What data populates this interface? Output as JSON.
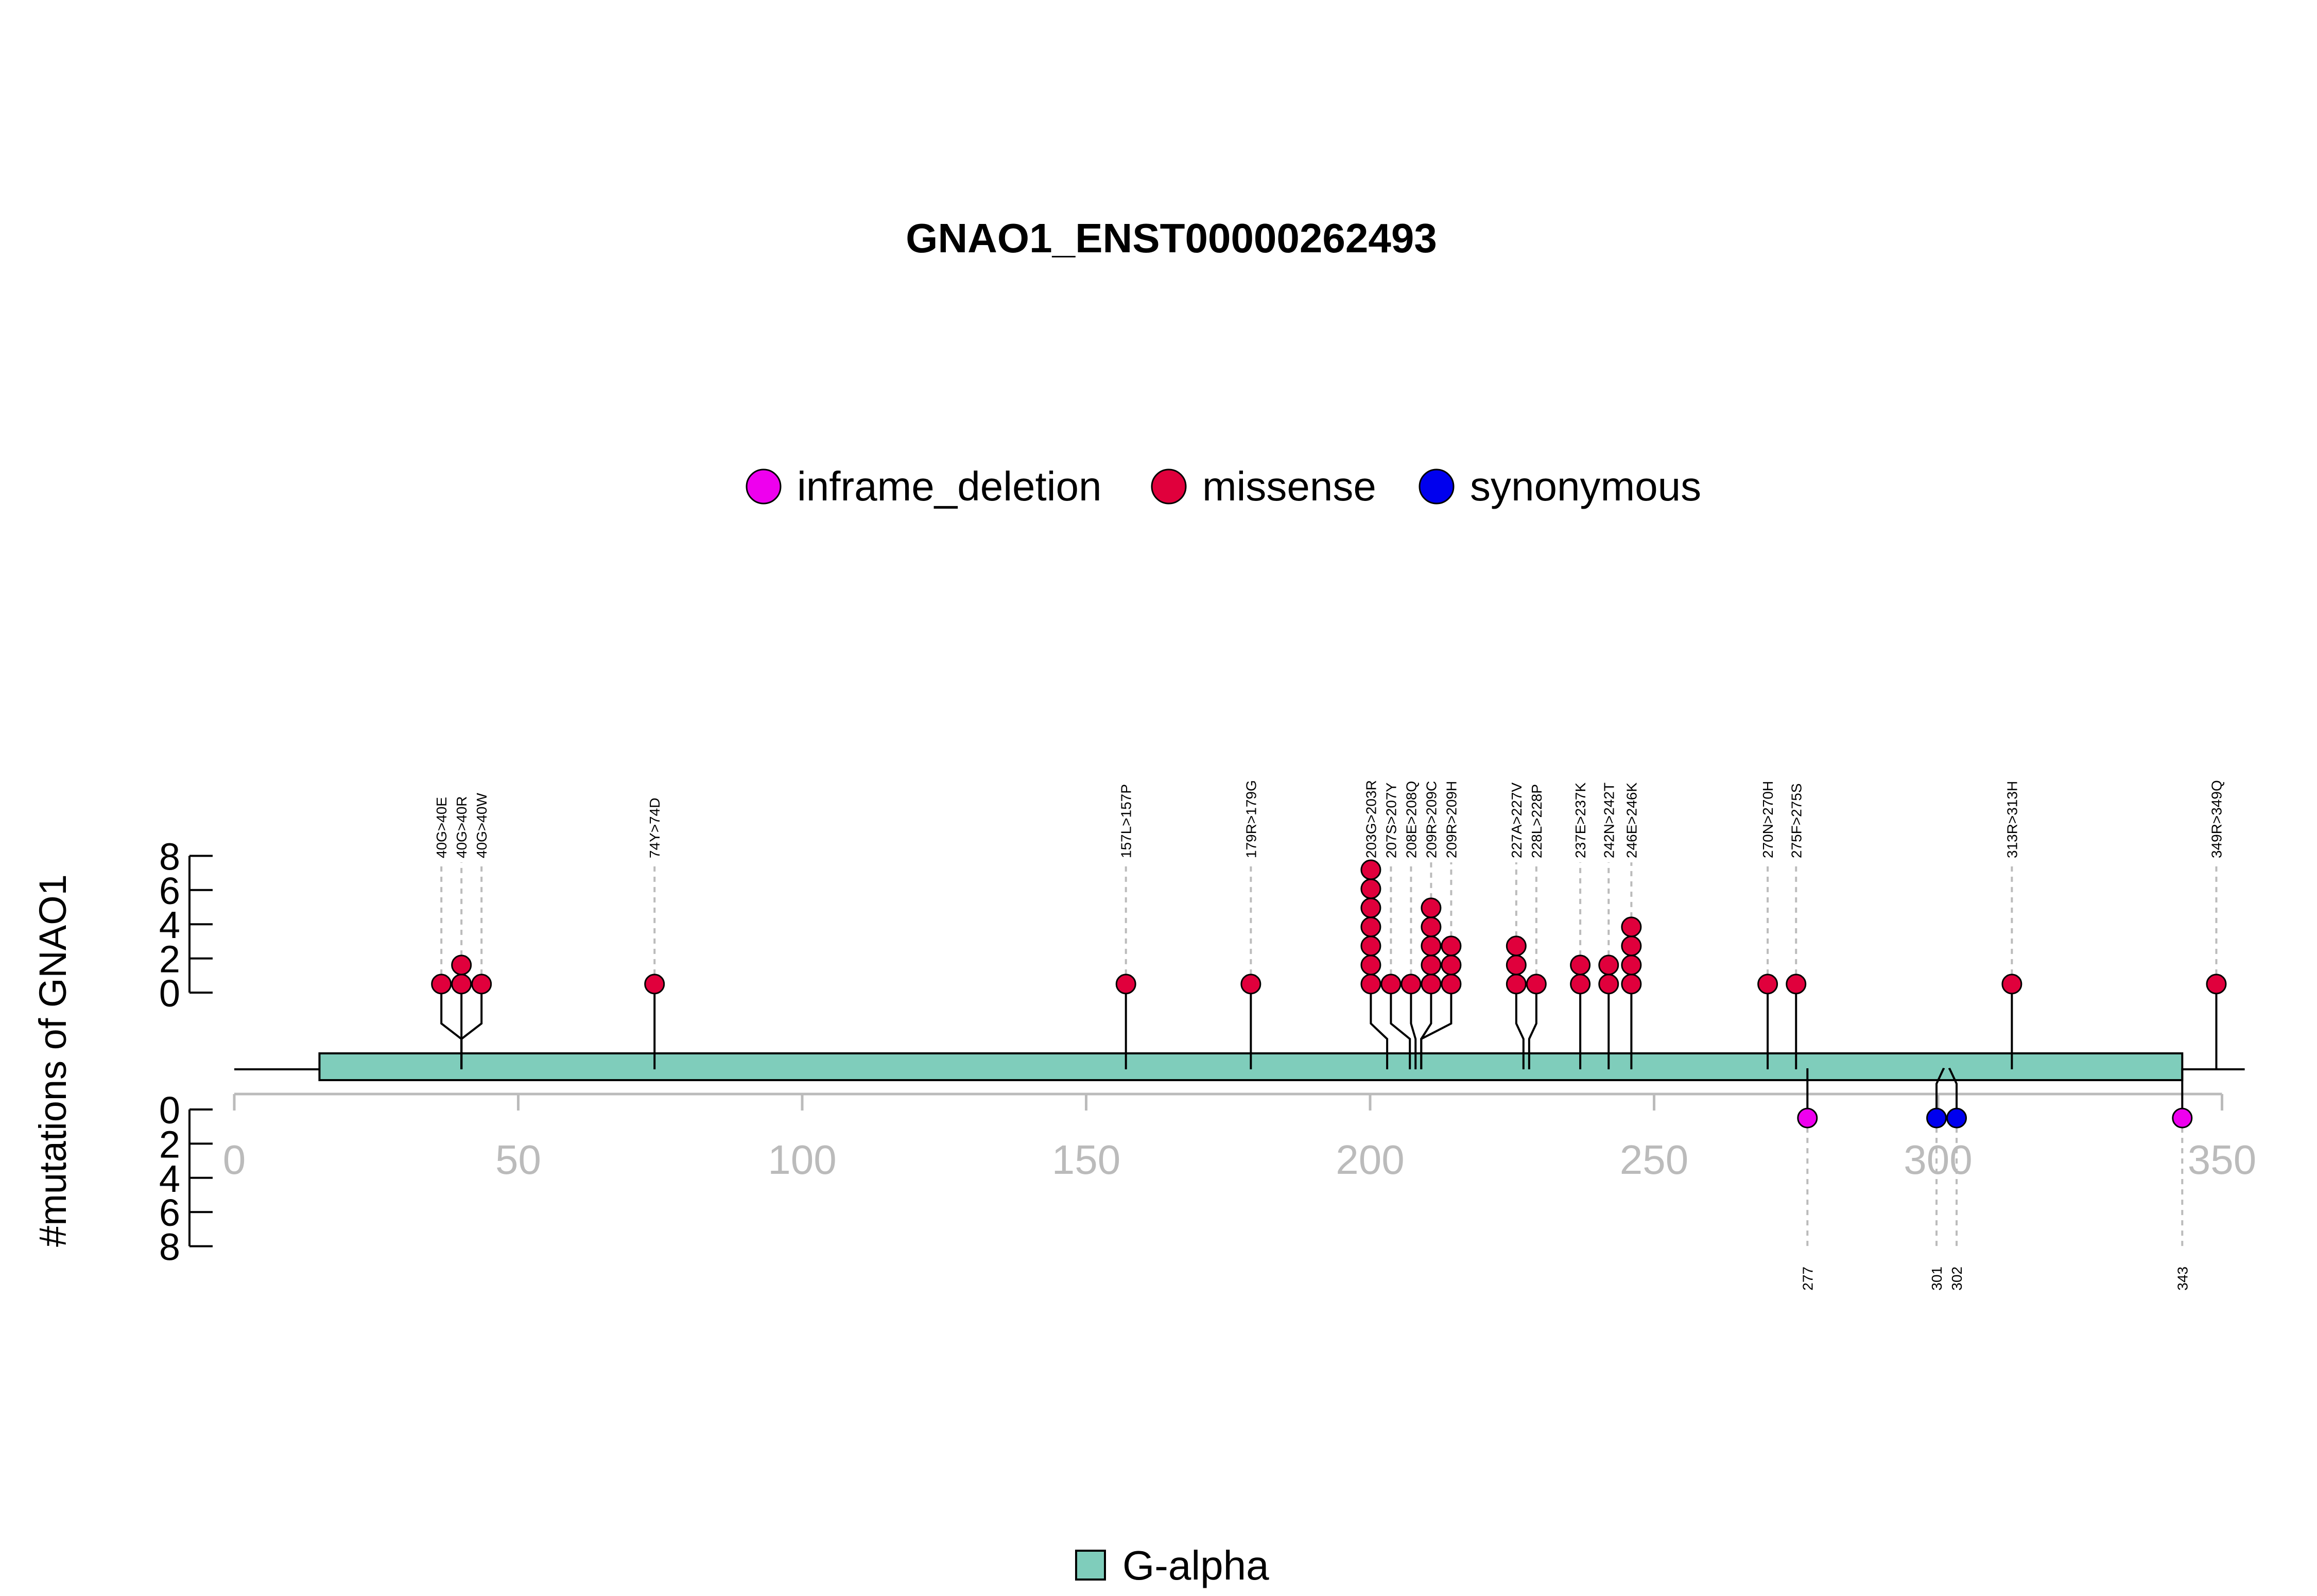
{
  "chart_data": {
    "type": "lollipop",
    "title": "GNAO1_ENST00000262493",
    "ylabel": "#mutations of GNAO1",
    "protein_length": 354,
    "xlim": [
      0,
      350
    ],
    "x_ticks": [
      0,
      50,
      100,
      150,
      200,
      250,
      300,
      350
    ],
    "y_ticks": [
      0,
      2,
      4,
      6,
      8
    ],
    "colors": {
      "inframe_deletion": "#EE00EE",
      "missense": "#E0003C",
      "synonymous": "#0000EE",
      "domain": "#7FCDBB",
      "axis": "#BBBBBB",
      "dash": "#BBBBBB"
    },
    "legend": [
      {
        "key": "inframe_deletion",
        "label": "inframe_deletion"
      },
      {
        "key": "missense",
        "label": "missense"
      },
      {
        "key": "synonymous",
        "label": "synonymous"
      }
    ],
    "domains": [
      {
        "name": "G-alpha",
        "start": 15,
        "end": 343
      }
    ],
    "domain_legend": "G-alpha",
    "top_mutations": [
      {
        "label": "40G>40E",
        "pos": 40,
        "count": 1,
        "type": "missense"
      },
      {
        "label": "40G>40R",
        "pos": 40,
        "count": 2,
        "type": "missense"
      },
      {
        "label": "40G>40W",
        "pos": 40,
        "count": 1,
        "type": "missense"
      },
      {
        "label": "74Y>74D",
        "pos": 74,
        "count": 1,
        "type": "missense"
      },
      {
        "label": "157L>157P",
        "pos": 157,
        "count": 1,
        "type": "missense"
      },
      {
        "label": "179R>179G",
        "pos": 179,
        "count": 1,
        "type": "missense"
      },
      {
        "label": "203G>203R",
        "pos": 203,
        "count": 7,
        "type": "missense"
      },
      {
        "label": "207S>207Y",
        "pos": 207,
        "count": 1,
        "type": "missense"
      },
      {
        "label": "208E>208Q",
        "pos": 208,
        "count": 1,
        "type": "missense"
      },
      {
        "label": "209R>209C",
        "pos": 209,
        "count": 5,
        "type": "missense"
      },
      {
        "label": "209R>209H",
        "pos": 209,
        "count": 3,
        "type": "missense"
      },
      {
        "label": "227A>227V",
        "pos": 227,
        "count": 3,
        "type": "missense"
      },
      {
        "label": "228L>228P",
        "pos": 228,
        "count": 1,
        "type": "missense"
      },
      {
        "label": "237E>237K",
        "pos": 237,
        "count": 2,
        "type": "missense"
      },
      {
        "label": "242N>242T",
        "pos": 242,
        "count": 2,
        "type": "missense"
      },
      {
        "label": "246E>246K",
        "pos": 246,
        "count": 4,
        "type": "missense"
      },
      {
        "label": "270N>270H",
        "pos": 270,
        "count": 1,
        "type": "missense"
      },
      {
        "label": "275F>275S",
        "pos": 275,
        "count": 1,
        "type": "missense"
      },
      {
        "label": "313R>313H",
        "pos": 313,
        "count": 1,
        "type": "missense"
      },
      {
        "label": "349R>349Q",
        "pos": 349,
        "count": 1,
        "type": "missense"
      }
    ],
    "bottom_mutations": [
      {
        "label": "277",
        "pos": 277,
        "count": 1,
        "type": "inframe_deletion"
      },
      {
        "label": "301",
        "pos": 301,
        "count": 1,
        "type": "synonymous"
      },
      {
        "label": "302",
        "pos": 302,
        "count": 1,
        "type": "synonymous"
      },
      {
        "label": "343",
        "pos": 343,
        "count": 1,
        "type": "inframe_deletion"
      }
    ]
  }
}
